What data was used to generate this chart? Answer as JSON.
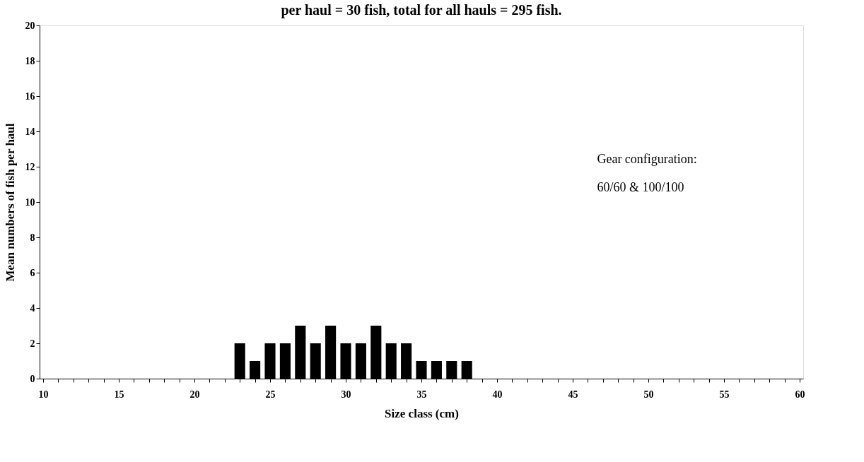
{
  "chart_data": {
    "type": "bar",
    "title": "per haul = 30 fish, total for all hauls = 295 fish.",
    "xlabel": "Size class (cm)",
    "ylabel": "Mean numbers of fish per haul",
    "x": [
      23,
      24,
      25,
      26,
      27,
      28,
      29,
      30,
      31,
      32,
      33,
      34,
      35,
      36,
      37,
      38
    ],
    "values": [
      2,
      1,
      2,
      2,
      3,
      2,
      3,
      2,
      2,
      3,
      2,
      2,
      1,
      1,
      1,
      1
    ],
    "color": "#000000",
    "xlim": [
      10,
      60
    ],
    "xticks": [
      10,
      {
        "value": 11,
        "label": null
      },
      {
        "value": 12,
        "label": null
      },
      {
        "value": 13,
        "label": null
      },
      {
        "value": 14,
        "label": null
      },
      15,
      {
        "value": 16,
        "label": null
      },
      {
        "value": 17,
        "label": null
      },
      {
        "value": 18,
        "label": null
      },
      {
        "value": 19,
        "label": null
      },
      20,
      {
        "value": 21,
        "label": null
      },
      {
        "value": 22,
        "label": null
      },
      {
        "value": 23,
        "label": null
      },
      {
        "value": 24,
        "label": null
      },
      25,
      {
        "value": 26,
        "label": null
      },
      {
        "value": 27,
        "label": null
      },
      {
        "value": 28,
        "label": null
      },
      {
        "value": 29,
        "label": null
      },
      30,
      {
        "value": 31,
        "label": null
      },
      {
        "value": 32,
        "label": null
      },
      {
        "value": 33,
        "label": null
      },
      {
        "value": 34,
        "label": null
      },
      35,
      {
        "value": 36,
        "label": null
      },
      {
        "value": 37,
        "label": null
      },
      {
        "value": 38,
        "label": null
      },
      {
        "value": 39,
        "label": null
      },
      40,
      {
        "value": 41,
        "label": null
      },
      {
        "value": 42,
        "label": null
      },
      {
        "value": 43,
        "label": null
      },
      {
        "value": 44,
        "label": null
      },
      45,
      {
        "value": 46,
        "label": null
      },
      {
        "value": 47,
        "label": null
      },
      {
        "value": 48,
        "label": null
      },
      {
        "value": 49,
        "label": null
      },
      50,
      {
        "value": 51,
        "label": null
      },
      {
        "value": 52,
        "label": null
      },
      {
        "value": 53,
        "label": null
      },
      {
        "value": 54,
        "label": null
      },
      55,
      {
        "value": 56,
        "label": null
      },
      {
        "value": 57,
        "label": null
      },
      {
        "value": 58,
        "label": null
      },
      {
        "value": 59,
        "label": null
      },
      60
    ],
    "ylim": [
      0,
      20
    ],
    "yticks": [
      0,
      2,
      4,
      6,
      8,
      10,
      12,
      14,
      16,
      18,
      20
    ],
    "grid": false,
    "annotations": [
      "Gear configuration:",
      "60/60 & 100/100"
    ]
  }
}
